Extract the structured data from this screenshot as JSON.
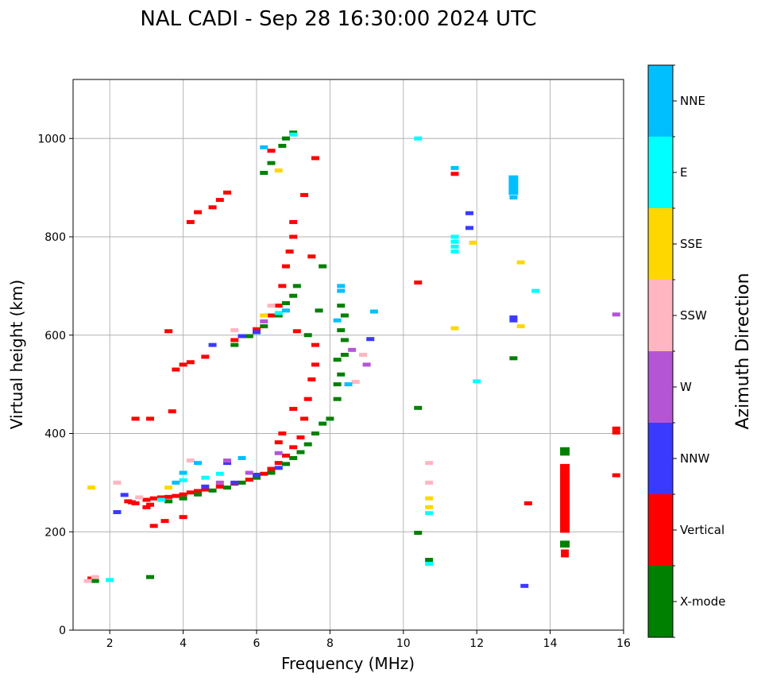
{
  "chart_data": {
    "type": "scatter",
    "title": "NAL CADI - Sep 28 16:30:00 2024 UTC",
    "xlabel": "Frequency (MHz)",
    "ylabel": "Virtual height (km)",
    "xlim": [
      1,
      16
    ],
    "ylim": [
      0,
      1120
    ],
    "xticks": [
      2,
      4,
      6,
      8,
      10,
      12,
      14,
      16
    ],
    "yticks": [
      0,
      200,
      400,
      600,
      800,
      1000
    ],
    "grid": true,
    "colorbar": {
      "label": "Azimuth Direction",
      "categories": [
        {
          "name": "X-mode",
          "color": "#008000"
        },
        {
          "name": "Vertical",
          "color": "#ff0000"
        },
        {
          "name": "NNW",
          "color": "#3a3aff"
        },
        {
          "name": "W",
          "color": "#b455d6"
        },
        {
          "name": "SSW",
          "color": "#ffb6c1"
        },
        {
          "name": "SSE",
          "color": "#ffd700"
        },
        {
          "name": "E",
          "color": "#00ffff"
        },
        {
          "name": "NNE",
          "color": "#00bfff"
        }
      ]
    },
    "series": [
      {
        "name": "Vertical",
        "points": [
          [
            2.5,
            262
          ],
          [
            2.6,
            260
          ],
          [
            2.7,
            258
          ],
          [
            3.0,
            265
          ],
          [
            3.2,
            268
          ],
          [
            3.4,
            270
          ],
          [
            3.6,
            271
          ],
          [
            3.8,
            273
          ],
          [
            4.0,
            276
          ],
          [
            4.2,
            280
          ],
          [
            4.4,
            283
          ],
          [
            4.6,
            286
          ],
          [
            5.0,
            292
          ],
          [
            5.4,
            298
          ],
          [
            5.8,
            306
          ],
          [
            6.2,
            318
          ],
          [
            6.4,
            328
          ],
          [
            6.6,
            340
          ],
          [
            6.8,
            355
          ],
          [
            7.0,
            372
          ],
          [
            7.2,
            392
          ],
          [
            7.3,
            430
          ],
          [
            7.4,
            470
          ],
          [
            7.5,
            510
          ],
          [
            7.6,
            540
          ],
          [
            3.1,
            255
          ],
          [
            3.2,
            212
          ],
          [
            3.0,
            250
          ],
          [
            4.0,
            230
          ],
          [
            6.6,
            382
          ],
          [
            6.7,
            400
          ],
          [
            7.0,
            450
          ],
          [
            4.2,
            545
          ],
          [
            4.0,
            540
          ],
          [
            3.8,
            530
          ],
          [
            4.6,
            556
          ],
          [
            5.4,
            590
          ],
          [
            6.0,
            612
          ],
          [
            6.4,
            640
          ],
          [
            6.6,
            660
          ],
          [
            6.7,
            700
          ],
          [
            6.8,
            740
          ],
          [
            6.9,
            770
          ],
          [
            7.0,
            800
          ],
          [
            7.0,
            830
          ],
          [
            5.2,
            890
          ],
          [
            5.0,
            875
          ],
          [
            4.8,
            860
          ],
          [
            4.4,
            850
          ],
          [
            4.2,
            830
          ],
          [
            3.7,
            445
          ],
          [
            3.1,
            430
          ],
          [
            3.6,
            608
          ],
          [
            7.1,
            608
          ],
          [
            7.6,
            580
          ],
          [
            7.5,
            760
          ],
          [
            7.6,
            960
          ],
          [
            7.3,
            885
          ],
          [
            6.4,
            975
          ],
          [
            10.4,
            707
          ],
          [
            11.4,
            928
          ],
          [
            13.4,
            258
          ],
          [
            15.8,
            410
          ],
          [
            15.8,
            402
          ],
          [
            15.8,
            315
          ],
          [
            14.4,
            160
          ],
          [
            14.4,
            152
          ],
          [
            2.7,
            430
          ],
          [
            1.5,
            105
          ],
          [
            3.5,
            222
          ]
        ]
      },
      {
        "name": "X-mode",
        "points": [
          [
            3.6,
            262
          ],
          [
            4.0,
            268
          ],
          [
            4.4,
            276
          ],
          [
            4.8,
            284
          ],
          [
            5.2,
            290
          ],
          [
            5.6,
            300
          ],
          [
            6.0,
            310
          ],
          [
            6.4,
            320
          ],
          [
            6.8,
            338
          ],
          [
            7.0,
            350
          ],
          [
            7.2,
            362
          ],
          [
            7.4,
            378
          ],
          [
            7.6,
            400
          ],
          [
            7.8,
            420
          ],
          [
            8.0,
            430
          ],
          [
            8.2,
            470
          ],
          [
            8.2,
            500
          ],
          [
            8.2,
            550
          ],
          [
            8.3,
            520
          ],
          [
            8.4,
            560
          ],
          [
            8.4,
            590
          ],
          [
            8.3,
            610
          ],
          [
            8.4,
            640
          ],
          [
            8.3,
            660
          ],
          [
            5.4,
            580
          ],
          [
            5.8,
            598
          ],
          [
            6.2,
            618
          ],
          [
            6.6,
            640
          ],
          [
            6.8,
            665
          ],
          [
            7.0,
            680
          ],
          [
            7.1,
            700
          ],
          [
            7.8,
            740
          ],
          [
            6.2,
            930
          ],
          [
            6.4,
            950
          ],
          [
            6.7,
            985
          ],
          [
            6.8,
            1000
          ],
          [
            7.0,
            1012
          ],
          [
            3.1,
            108
          ],
          [
            1.6,
            100
          ],
          [
            10.4,
            198
          ],
          [
            10.4,
            452
          ],
          [
            10.7,
            143
          ],
          [
            13.0,
            553
          ],
          [
            7.4,
            600
          ],
          [
            7.7,
            650
          ]
        ]
      },
      {
        "name": "NNW",
        "points": [
          [
            2.4,
            275
          ],
          [
            4.6,
            292
          ],
          [
            5.4,
            300
          ],
          [
            6.0,
            316
          ],
          [
            6.6,
            330
          ],
          [
            4.8,
            580
          ],
          [
            5.6,
            598
          ],
          [
            6.0,
            606
          ],
          [
            9.1,
            592
          ],
          [
            11.8,
            848
          ],
          [
            11.8,
            818
          ],
          [
            13.0,
            636
          ],
          [
            13.0,
            630
          ],
          [
            13.0,
            912
          ],
          [
            13.0,
            905
          ],
          [
            13.0,
            895
          ],
          [
            13.3,
            90
          ],
          [
            2.2,
            240
          ],
          [
            5.2,
            340
          ]
        ]
      },
      {
        "name": "W",
        "points": [
          [
            5.0,
            300
          ],
          [
            5.8,
            320
          ],
          [
            6.2,
            628
          ],
          [
            8.6,
            570
          ],
          [
            9.0,
            540
          ],
          [
            15.8,
            642
          ],
          [
            5.2,
            345
          ],
          [
            6.6,
            360
          ]
        ]
      },
      {
        "name": "SSW",
        "points": [
          [
            1.6,
            108
          ],
          [
            2.2,
            300
          ],
          [
            2.8,
            270
          ],
          [
            4.2,
            345
          ],
          [
            5.4,
            610
          ],
          [
            6.4,
            660
          ],
          [
            10.7,
            340
          ],
          [
            10.7,
            300
          ],
          [
            8.7,
            505
          ],
          [
            8.9,
            560
          ],
          [
            1.4,
            100
          ]
        ]
      },
      {
        "name": "SSE",
        "points": [
          [
            1.5,
            290
          ],
          [
            3.6,
            290
          ],
          [
            6.6,
            935
          ],
          [
            11.9,
            788
          ],
          [
            13.2,
            748
          ],
          [
            13.2,
            618
          ],
          [
            11.4,
            614
          ],
          [
            6.2,
            640
          ],
          [
            10.7,
            268
          ],
          [
            10.7,
            250
          ]
        ]
      },
      {
        "name": "E",
        "points": [
          [
            3.4,
            265
          ],
          [
            4.0,
            305
          ],
          [
            5.0,
            318
          ],
          [
            6.6,
            645
          ],
          [
            7.0,
            1008
          ],
          [
            11.4,
            800
          ],
          [
            11.4,
            790
          ],
          [
            11.4,
            780
          ],
          [
            11.4,
            770
          ],
          [
            13.6,
            690
          ],
          [
            12.0,
            506
          ],
          [
            10.4,
            1000
          ],
          [
            10.7,
            238
          ],
          [
            10.7,
            135
          ],
          [
            4.6,
            310
          ],
          [
            2.0,
            102
          ]
        ]
      },
      {
        "name": "NNE",
        "points": [
          [
            4.0,
            320
          ],
          [
            4.4,
            340
          ],
          [
            6.8,
            650
          ],
          [
            6.2,
            982
          ],
          [
            8.3,
            700
          ],
          [
            8.3,
            690
          ],
          [
            8.5,
            500
          ],
          [
            9.2,
            648
          ],
          [
            13.0,
            920
          ],
          [
            13.0,
            880
          ],
          [
            11.4,
            940
          ],
          [
            8.2,
            630
          ],
          [
            3.8,
            300
          ],
          [
            5.6,
            350
          ]
        ]
      }
    ],
    "bars": [
      {
        "name": "X-mode",
        "x": 14.4,
        "y0": 355,
        "y1": 372
      },
      {
        "name": "Vertical",
        "x": 14.4,
        "y0": 198,
        "y1": 338
      },
      {
        "name": "X-mode",
        "x": 14.4,
        "y0": 168,
        "y1": 182
      },
      {
        "name": "NNE",
        "x": 13.0,
        "y0": 885,
        "y1": 925
      }
    ]
  }
}
